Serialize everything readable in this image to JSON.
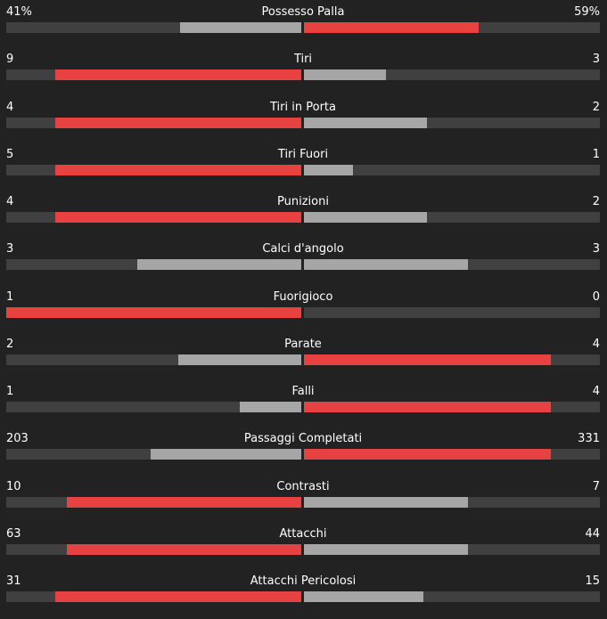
{
  "colors": {
    "leader": "#e84141",
    "trailer": "#a6a6a6",
    "track": "#404040"
  },
  "stats": [
    {
      "name": "Possesso Palla",
      "home": "41%",
      "away": "59%",
      "home_value": 41,
      "away_value": 59,
      "scale": 100
    },
    {
      "name": "Tiri",
      "home": "9",
      "away": "3",
      "home_value": 9,
      "away_value": 3
    },
    {
      "name": "Tiri in Porta",
      "home": "4",
      "away": "2",
      "home_value": 4,
      "away_value": 2
    },
    {
      "name": "Tiri Fuori",
      "home": "5",
      "away": "1",
      "home_value": 5,
      "away_value": 1
    },
    {
      "name": "Punizioni",
      "home": "4",
      "away": "2",
      "home_value": 4,
      "away_value": 2
    },
    {
      "name": "Calci d'angolo",
      "home": "3",
      "away": "3",
      "home_value": 3,
      "away_value": 3
    },
    {
      "name": "Fuorigioco",
      "home": "1",
      "away": "0",
      "home_value": 1,
      "away_value": 0
    },
    {
      "name": "Parate",
      "home": "2",
      "away": "4",
      "home_value": 2,
      "away_value": 4
    },
    {
      "name": "Falli",
      "home": "1",
      "away": "4",
      "home_value": 1,
      "away_value": 4
    },
    {
      "name": "Passaggi Completati",
      "home": "203",
      "away": "331",
      "home_value": 203,
      "away_value": 331
    },
    {
      "name": "Contrasti",
      "home": "10",
      "away": "7",
      "home_value": 10,
      "away_value": 7
    },
    {
      "name": "Attacchi",
      "home": "63",
      "away": "44",
      "home_value": 63,
      "away_value": 44
    },
    {
      "name": "Attacchi Pericolosi",
      "home": "31",
      "away": "15",
      "home_value": 31,
      "away_value": 15
    }
  ]
}
